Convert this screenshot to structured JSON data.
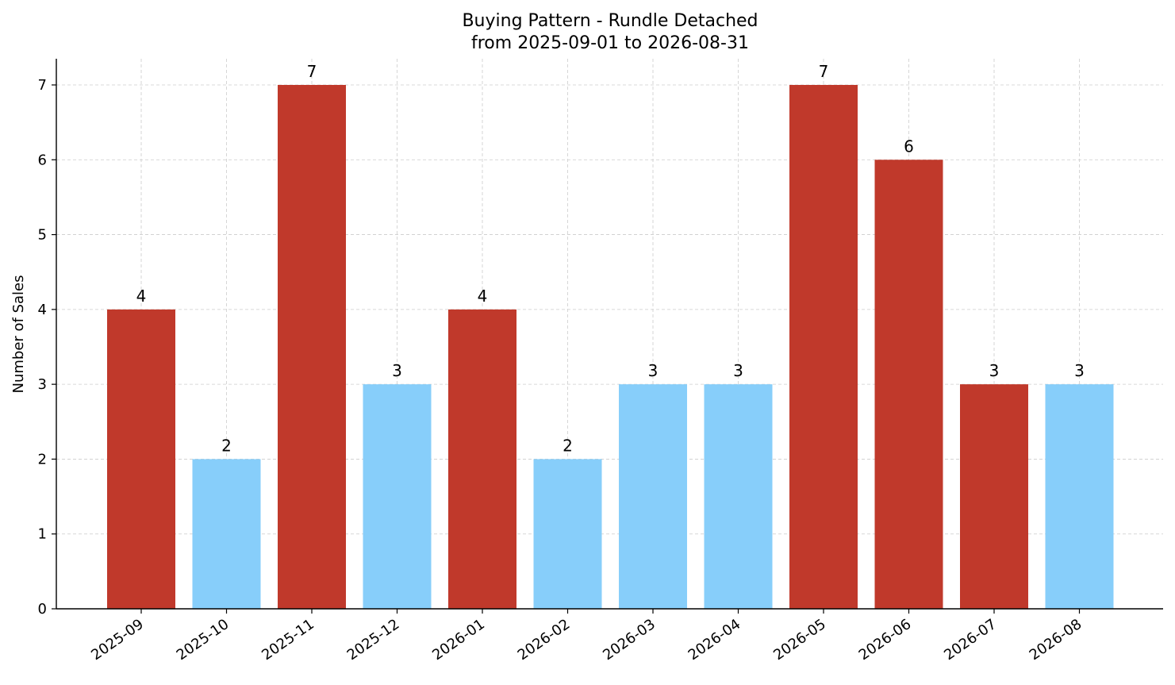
{
  "chart_data": {
    "type": "bar",
    "title_line1": "Buying Pattern - Rundle Detached",
    "title_line2": "from 2025-09-01 to 2026-08-31",
    "xlabel": "",
    "ylabel": "Number of Sales",
    "categories": [
      "2025-09",
      "2025-10",
      "2025-11",
      "2025-12",
      "2026-01",
      "2026-02",
      "2026-03",
      "2026-04",
      "2026-05",
      "2026-06",
      "2026-07",
      "2026-08"
    ],
    "values": [
      4,
      2,
      7,
      3,
      4,
      2,
      3,
      3,
      7,
      6,
      3,
      3
    ],
    "bar_colors": [
      "#c0392b",
      "#87cefa",
      "#c0392b",
      "#87cefa",
      "#c0392b",
      "#87cefa",
      "#87cefa",
      "#87cefa",
      "#c0392b",
      "#c0392b",
      "#c0392b",
      "#87cefa"
    ],
    "ylim": [
      0,
      7.35
    ],
    "yticks": [
      0,
      1,
      2,
      3,
      4,
      5,
      6,
      7
    ],
    "grid": true,
    "show_value_labels": true
  }
}
